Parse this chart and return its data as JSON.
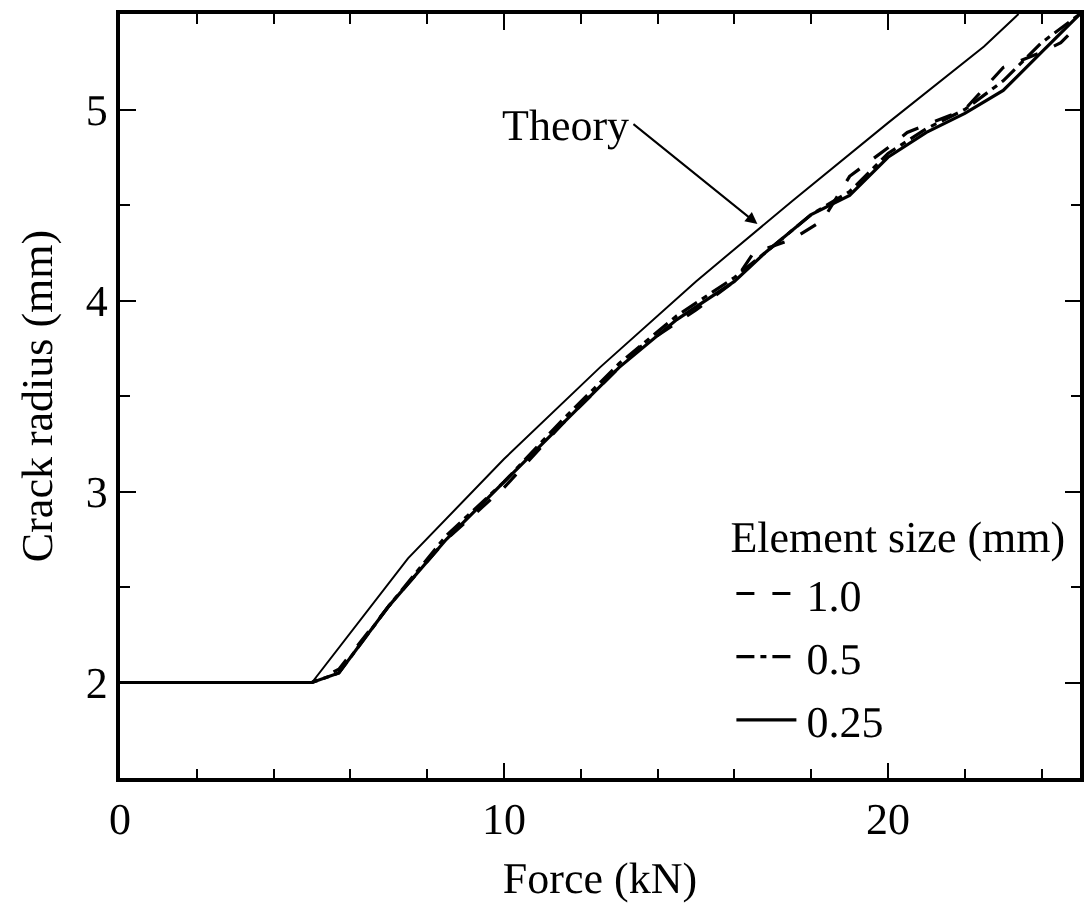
{
  "chart_data": {
    "type": "line",
    "xlabel": "Force (kN)",
    "ylabel": "Crack radius (mm)",
    "legend_title": "Element size (mm)",
    "legend": "bottom right",
    "xlim": [
      0,
      25
    ],
    "xticks": [
      0,
      10,
      20
    ],
    "ylim": [
      1.5,
      5.5
    ],
    "yticks": [
      2,
      3,
      4,
      5
    ],
    "grid": false,
    "marker": "none",
    "annotations": [
      {
        "text": "Theory",
        "x": 16.6,
        "y": 4.4
      }
    ],
    "series": [
      {
        "name": "1.0",
        "color": "#000000",
        "line_style": "dashed",
        "x": [
          0,
          5,
          5.7,
          7,
          8.5,
          10,
          11.5,
          12.5,
          13.5,
          15,
          16,
          16.5,
          17.5,
          18.3,
          19,
          20,
          20.5,
          22,
          23,
          24,
          24.5,
          25
        ],
        "values": [
          2,
          2,
          2.07,
          2.4,
          2.75,
          3.02,
          3.35,
          3.55,
          3.75,
          3.95,
          4.1,
          4.25,
          4.32,
          4.42,
          4.65,
          4.8,
          4.88,
          5.0,
          5.22,
          5.3,
          5.35,
          5.45
        ]
      },
      {
        "name": "0.5",
        "color": "#000000",
        "line_style": "dashdot",
        "x": [
          0,
          5,
          5.7,
          7,
          8.5,
          10,
          11.5,
          13,
          14.5,
          16,
          16.8,
          18,
          19,
          20,
          21,
          22,
          23,
          24,
          25
        ],
        "values": [
          2,
          2,
          2.05,
          2.4,
          2.77,
          3.05,
          3.37,
          3.67,
          3.92,
          4.12,
          4.25,
          4.45,
          4.57,
          4.77,
          4.9,
          5.0,
          5.15,
          5.35,
          5.5
        ]
      },
      {
        "name": "0.25",
        "color": "#000000",
        "line_style": "solid",
        "x": [
          0,
          5,
          5.7,
          7,
          8.5,
          10,
          11.5,
          13,
          14.5,
          16,
          16.8,
          18,
          19,
          20,
          21,
          22,
          23,
          24,
          25
        ],
        "values": [
          2,
          2,
          2.05,
          2.4,
          2.75,
          3.05,
          3.35,
          3.65,
          3.9,
          4.1,
          4.25,
          4.45,
          4.55,
          4.75,
          4.88,
          4.98,
          5.1,
          5.3,
          5.5
        ]
      },
      {
        "color": "#000000",
        "line_style": "solid",
        "x": [
          5,
          7.5,
          10,
          12.5,
          15,
          17.5,
          20,
          22.5,
          23.4
        ],
        "values": [
          2,
          2.65,
          3.17,
          3.65,
          4.1,
          4.52,
          4.93,
          5.33,
          5.5
        ]
      }
    ]
  }
}
